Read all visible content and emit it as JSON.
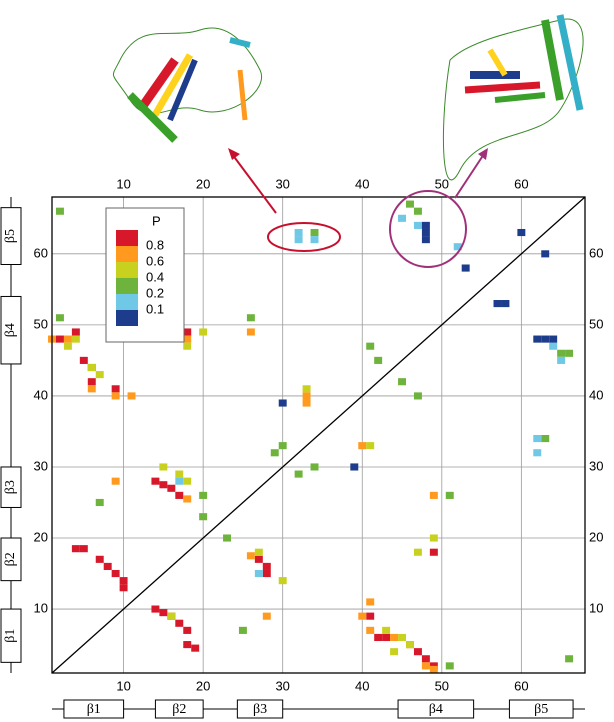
{
  "chart_data": {
    "type": "contact-map",
    "xlim": [
      1,
      68
    ],
    "ylim": [
      1,
      68
    ],
    "xticks": [
      10,
      20,
      30,
      40,
      50,
      60
    ],
    "yticks": [
      10,
      20,
      30,
      40,
      50,
      60
    ],
    "grid": true,
    "diagonal": true,
    "legend": {
      "title": "P",
      "ticks": [
        0.8,
        0.6,
        0.4,
        0.2,
        0.1
      ],
      "colors": [
        "#d7182a",
        "#ff9a1e",
        "#c8d21e",
        "#6eb43c",
        "#6ec8e6",
        "#1e3c8c"
      ]
    },
    "points": {
      "x": [
        4,
        2,
        5,
        6,
        6,
        9,
        18,
        5,
        4,
        7,
        8,
        9,
        10,
        10,
        14,
        15,
        16,
        17,
        27,
        28,
        28,
        14,
        15,
        16,
        17,
        18,
        18,
        19,
        41,
        42,
        43,
        46,
        47,
        48,
        49,
        49,
        1,
        3,
        6,
        9,
        11,
        18,
        26,
        9,
        18,
        26,
        33,
        33,
        28,
        40,
        41,
        40,
        49,
        48,
        49,
        41,
        44,
        3,
        4,
        6,
        7,
        18,
        20,
        18,
        16,
        15,
        17,
        27,
        30,
        33,
        41,
        47,
        49,
        43,
        45,
        46,
        44,
        2,
        2,
        20,
        20,
        26,
        7,
        23,
        25,
        29,
        30,
        32,
        34,
        41,
        42,
        45,
        47,
        46,
        51,
        51,
        66,
        63,
        66,
        65,
        34,
        47,
        17,
        27,
        32,
        32,
        34,
        45,
        47,
        52,
        62,
        62,
        64,
        65,
        30,
        39,
        48,
        48,
        48,
        53,
        57,
        58,
        60,
        63,
        62,
        64,
        63
      ],
      "y": [
        49,
        48,
        45,
        44,
        42,
        41,
        49,
        18.5,
        18.5,
        17,
        16,
        15,
        14,
        13,
        28,
        27.5,
        27,
        26,
        17,
        16,
        15,
        10,
        9.5,
        9,
        8,
        7,
        5,
        4.5,
        9,
        6,
        6,
        5,
        4,
        3,
        18,
        2,
        48,
        48,
        41,
        40,
        40,
        48,
        49,
        28,
        25.5,
        17.5,
        39,
        40,
        9,
        33,
        11,
        9,
        26,
        2,
        1.5,
        7,
        6,
        47,
        48,
        44,
        43,
        28,
        49,
        47,
        9,
        30,
        29,
        18,
        14,
        41,
        33,
        18,
        20,
        7,
        6,
        5,
        4,
        66,
        51,
        26,
        23,
        51,
        25,
        20,
        7,
        32,
        33,
        29,
        30,
        47,
        45,
        42,
        40,
        67,
        26,
        2,
        3,
        34,
        46,
        46,
        63,
        66,
        28,
        15,
        63,
        62,
        62,
        65,
        64,
        61,
        34,
        32,
        47,
        45,
        39,
        30,
        64,
        63,
        62,
        58,
        53,
        53,
        63,
        60,
        48,
        48,
        48
      ],
      "p": [
        0.9,
        0.9,
        0.9,
        0.9,
        0.9,
        0.9,
        0.9,
        0.9,
        0.9,
        0.9,
        0.9,
        0.9,
        0.9,
        0.9,
        0.9,
        0.9,
        0.9,
        0.9,
        0.9,
        0.9,
        0.9,
        0.9,
        0.9,
        0.9,
        0.9,
        0.9,
        0.9,
        0.9,
        0.9,
        0.9,
        0.9,
        0.9,
        0.9,
        0.9,
        0.9,
        0.9,
        0.7,
        0.7,
        0.7,
        0.7,
        0.7,
        0.7,
        0.7,
        0.7,
        0.7,
        0.7,
        0.7,
        0.7,
        0.7,
        0.7,
        0.7,
        0.7,
        0.7,
        0.7,
        0.7,
        0.7,
        0.7,
        0.5,
        0.5,
        0.5,
        0.5,
        0.5,
        0.5,
        0.5,
        0.5,
        0.5,
        0.5,
        0.5,
        0.5,
        0.5,
        0.5,
        0.5,
        0.5,
        0.5,
        0.5,
        0.5,
        0.5,
        0.3,
        0.3,
        0.3,
        0.3,
        0.3,
        0.3,
        0.3,
        0.3,
        0.3,
        0.3,
        0.3,
        0.3,
        0.3,
        0.3,
        0.3,
        0.3,
        0.3,
        0.3,
        0.3,
        0.3,
        0.3,
        0.3,
        0.3,
        0.3,
        0.3,
        0.15,
        0.15,
        0.15,
        0.15,
        0.15,
        0.15,
        0.15,
        0.15,
        0.15,
        0.15,
        0.15,
        0.15,
        0.05,
        0.05,
        0.05,
        0.05,
        0.05,
        0.05,
        0.05,
        0.05,
        0.05,
        0.05,
        0.05,
        0.05,
        0.05
      ]
    },
    "secondary_structure": [
      {
        "label": "β1",
        "start": 2.5,
        "end": 10
      },
      {
        "label": "β2",
        "start": 14,
        "end": 20
      },
      {
        "label": "β3",
        "start": 24.3,
        "end": 30
      },
      {
        "label": "β4",
        "start": 44.5,
        "end": 54
      },
      {
        "label": "β5",
        "start": 58.5,
        "end": 66.5
      }
    ]
  }
}
